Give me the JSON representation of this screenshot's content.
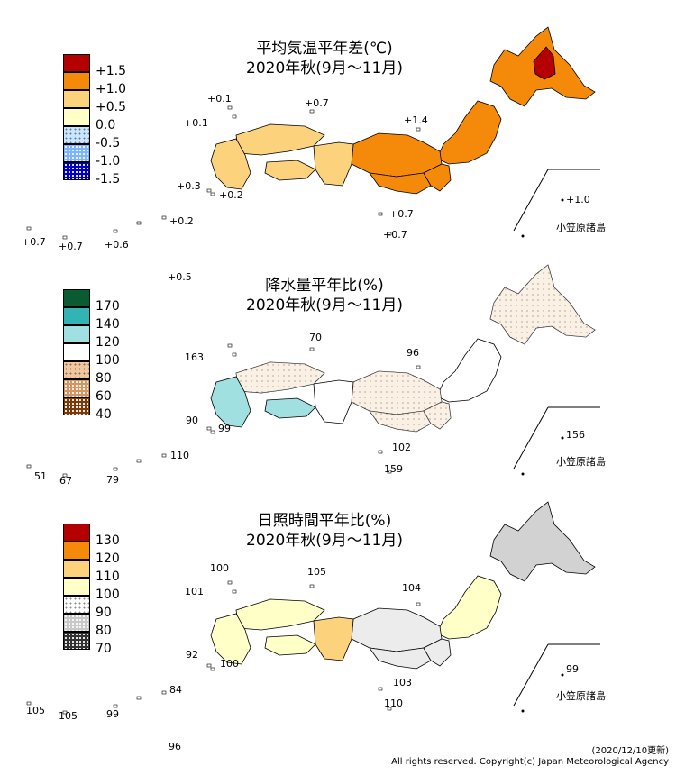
{
  "panels": [
    {
      "id": "temp",
      "title_line1": "平均気温平年差(℃)",
      "title_line2": "2020年秋(9月～11月)",
      "legend": [
        {
          "label": "+1.5",
          "color": "#b40000",
          "pattern": "solid"
        },
        {
          "label": "+1.0",
          "color": "#f58a0a",
          "pattern": "solid"
        },
        {
          "label": "+0.5",
          "color": "#fcd27c",
          "pattern": "solid"
        },
        {
          "label": "0.0",
          "color": "#ffffc8",
          "pattern": "solid"
        },
        {
          "label": "-0.5",
          "color": "#c8e6ff",
          "pattern": "dots-light"
        },
        {
          "label": "-1.0",
          "color": "#7db4ff",
          "pattern": "dots"
        },
        {
          "label": "-1.5",
          "color": "#0000c8",
          "pattern": "dots-dense"
        }
      ],
      "values": [
        "+0.1",
        "+0.7",
        "+0.1",
        "+1.4",
        "+0.3",
        "+0.2",
        "+0.7",
        "+0.7",
        "+0.7",
        "+0.7",
        "+0.6",
        "+0.2",
        "+0.5",
        "+1.0"
      ],
      "region_colors": {
        "hokkaido": "#f58a0a",
        "hokkaido_hot": "#b40000",
        "tohoku": "#f58a0a",
        "kanto": "#f58a0a",
        "chubu": "#f58a0a",
        "kinki": "#fcd27c",
        "chugoku": "#fcd27c",
        "shikoku": "#fcd27c",
        "kyushu": "#fcd27c",
        "pacific_coast": "#f58a0a"
      },
      "ogasawara": "小笠原諸島"
    },
    {
      "id": "precip",
      "title_line1": "降水量平年比(%)",
      "title_line2": "2020年秋(9月～11月)",
      "legend": [
        {
          "label": "170",
          "color": "#0a5a32",
          "pattern": "solid"
        },
        {
          "label": "140",
          "color": "#32b4b4",
          "pattern": "solid"
        },
        {
          "label": "120",
          "color": "#a0e0e0",
          "pattern": "solid"
        },
        {
          "label": "100",
          "color": "#ffffff",
          "pattern": "solid"
        },
        {
          "label": "80",
          "color": "#f0c8a0",
          "pattern": "dots-light"
        },
        {
          "label": "60",
          "color": "#d29664",
          "pattern": "dots"
        },
        {
          "label": "40",
          "color": "#783c0a",
          "pattern": "dots-dense"
        }
      ],
      "values": [
        "70",
        "163",
        "96",
        "90",
        "99",
        "102",
        "159",
        "51",
        "67",
        "79",
        "110",
        "156"
      ],
      "region_colors": {
        "hokkaido": "#f6e0c8",
        "tohoku": "#ffffff",
        "kanto": "#f6e0c8",
        "chubu": "#f6e0c8",
        "kinki": "#ffffff",
        "chugoku": "#f6e0c8",
        "shikoku": "#a0e0e0",
        "kyushu": "#a0e0e0",
        "pacific_coast": "#f6e0c8"
      },
      "ogasawara": "小笠原諸島"
    },
    {
      "id": "sun",
      "title_line1": "日照時間平年比(%)",
      "title_line2": "2020年秋(9月～11月)",
      "legend": [
        {
          "label": "130",
          "color": "#b40000",
          "pattern": "solid"
        },
        {
          "label": "120",
          "color": "#f58a0a",
          "pattern": "solid"
        },
        {
          "label": "110",
          "color": "#fcd27c",
          "pattern": "solid"
        },
        {
          "label": "100",
          "color": "#ffffc8",
          "pattern": "solid"
        },
        {
          "label": "90",
          "color": "#ffffff",
          "pattern": "dots-light"
        },
        {
          "label": "80",
          "color": "#c8c8c8",
          "pattern": "dots"
        },
        {
          "label": "70",
          "color": "#323232",
          "pattern": "dots-dense"
        }
      ],
      "values": [
        "100",
        "105",
        "101",
        "104",
        "92",
        "100",
        "103",
        "110",
        "105",
        "105",
        "99",
        "84",
        "96",
        "99"
      ],
      "region_colors": {
        "hokkaido": "#d2d2d2",
        "tohoku": "#ffffc8",
        "kanto": "#ececec",
        "chubu": "#ececec",
        "kinki": "#fcd27c",
        "chugoku": "#ffffc8",
        "shikoku": "#ffffc8",
        "kyushu": "#ffffc8",
        "pacific_coast": "#ececec"
      },
      "ogasawara": "小笠原諸島"
    }
  ],
  "footer": {
    "date": "(2020/12/10更新)",
    "copyright": "All rights reserved. Copyright(c) Japan Meteorological Agency"
  }
}
